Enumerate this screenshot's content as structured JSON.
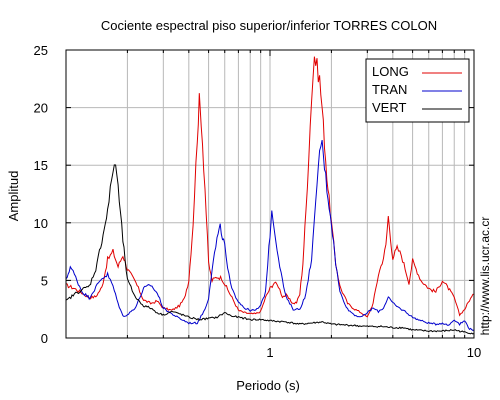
{
  "chart_data": {
    "type": "line",
    "title": "Cociente espectral piso superior/inferior  TORRES COLON",
    "xlabel": "Periodo (s)",
    "ylabel": "Amplitud",
    "xscale": "log",
    "xlim": [
      0.1,
      10
    ],
    "ylim": [
      0,
      25
    ],
    "yticks": [
      0,
      5,
      10,
      15,
      20,
      25
    ],
    "xtick_labels": [
      {
        "value": 1,
        "label": "1"
      },
      {
        "value": 10,
        "label": "10"
      }
    ],
    "grid": true,
    "legend": "top-right",
    "side_text": "http://www.lis.ucr.ac.cr",
    "series": [
      {
        "name": "LONG",
        "color": "#e00000",
        "points": [
          [
            0.1,
            4.6
          ],
          [
            0.11,
            4.3
          ],
          [
            0.12,
            3.9
          ],
          [
            0.13,
            3.5
          ],
          [
            0.14,
            3.6
          ],
          [
            0.15,
            4.4
          ],
          [
            0.16,
            6.8
          ],
          [
            0.17,
            7.5
          ],
          [
            0.18,
            6.2
          ],
          [
            0.19,
            7.2
          ],
          [
            0.2,
            6.0
          ],
          [
            0.22,
            4.8
          ],
          [
            0.24,
            3.3
          ],
          [
            0.26,
            3.0
          ],
          [
            0.28,
            3.2
          ],
          [
            0.3,
            2.6
          ],
          [
            0.33,
            2.4
          ],
          [
            0.36,
            2.8
          ],
          [
            0.38,
            3.4
          ],
          [
            0.4,
            5.0
          ],
          [
            0.42,
            10.0
          ],
          [
            0.44,
            17.5
          ],
          [
            0.45,
            20.6
          ],
          [
            0.46,
            19.0
          ],
          [
            0.48,
            13.0
          ],
          [
            0.5,
            6.5
          ],
          [
            0.52,
            5.0
          ],
          [
            0.55,
            5.3
          ],
          [
            0.58,
            5.2
          ],
          [
            0.62,
            4.2
          ],
          [
            0.66,
            3.3
          ],
          [
            0.7,
            2.4
          ],
          [
            0.75,
            2.2
          ],
          [
            0.8,
            2.1
          ],
          [
            0.85,
            2.1
          ],
          [
            0.9,
            2.3
          ],
          [
            0.95,
            3.5
          ],
          [
            1.0,
            4.3
          ],
          [
            1.05,
            4.8
          ],
          [
            1.1,
            4.5
          ],
          [
            1.15,
            3.6
          ],
          [
            1.2,
            3.7
          ],
          [
            1.25,
            3.3
          ],
          [
            1.3,
            3.0
          ],
          [
            1.35,
            3.1
          ],
          [
            1.4,
            3.8
          ],
          [
            1.45,
            6.5
          ],
          [
            1.5,
            11.0
          ],
          [
            1.55,
            16.0
          ],
          [
            1.6,
            21.0
          ],
          [
            1.65,
            24.5
          ],
          [
            1.7,
            23.5
          ],
          [
            1.75,
            22.5
          ],
          [
            1.8,
            20.0
          ],
          [
            1.85,
            17.0
          ],
          [
            1.9,
            14.0
          ],
          [
            2.0,
            10.0
          ],
          [
            2.1,
            6.5
          ],
          [
            2.2,
            4.5
          ],
          [
            2.4,
            3.0
          ],
          [
            2.6,
            2.5
          ],
          [
            2.8,
            2.2
          ],
          [
            3.0,
            1.8
          ],
          [
            3.2,
            3.0
          ],
          [
            3.4,
            5.5
          ],
          [
            3.6,
            7.0
          ],
          [
            3.7,
            8.0
          ],
          [
            3.8,
            10.6
          ],
          [
            3.9,
            8.5
          ],
          [
            4.0,
            7.0
          ],
          [
            4.2,
            7.8
          ],
          [
            4.4,
            7.2
          ],
          [
            4.6,
            6.0
          ],
          [
            4.8,
            4.8
          ],
          [
            5.0,
            6.7
          ],
          [
            5.2,
            6.0
          ],
          [
            5.5,
            5.0
          ],
          [
            6.0,
            4.3
          ],
          [
            6.5,
            4.0
          ],
          [
            7.0,
            5.0
          ],
          [
            7.5,
            4.3
          ],
          [
            8.0,
            3.5
          ],
          [
            8.5,
            2.0
          ],
          [
            9.0,
            2.5
          ],
          [
            9.5,
            3.3
          ],
          [
            10.0,
            3.8
          ]
        ]
      },
      {
        "name": "TRAN",
        "color": "#0000cc",
        "points": [
          [
            0.1,
            5.0
          ],
          [
            0.105,
            6.2
          ],
          [
            0.11,
            5.5
          ],
          [
            0.12,
            4.0
          ],
          [
            0.13,
            3.5
          ],
          [
            0.14,
            4.4
          ],
          [
            0.15,
            5.2
          ],
          [
            0.16,
            5.5
          ],
          [
            0.17,
            4.5
          ],
          [
            0.18,
            3.0
          ],
          [
            0.19,
            1.9
          ],
          [
            0.2,
            2.0
          ],
          [
            0.22,
            2.7
          ],
          [
            0.24,
            4.3
          ],
          [
            0.26,
            4.6
          ],
          [
            0.28,
            3.9
          ],
          [
            0.3,
            2.6
          ],
          [
            0.33,
            2.1
          ],
          [
            0.36,
            1.7
          ],
          [
            0.4,
            1.3
          ],
          [
            0.44,
            1.3
          ],
          [
            0.48,
            2.5
          ],
          [
            0.5,
            3.5
          ],
          [
            0.52,
            6.0
          ],
          [
            0.55,
            8.6
          ],
          [
            0.57,
            9.6
          ],
          [
            0.6,
            8.0
          ],
          [
            0.62,
            6.0
          ],
          [
            0.65,
            4.2
          ],
          [
            0.7,
            3.2
          ],
          [
            0.75,
            2.6
          ],
          [
            0.8,
            2.4
          ],
          [
            0.85,
            2.4
          ],
          [
            0.9,
            2.8
          ],
          [
            0.95,
            4.0
          ],
          [
            1.0,
            9.0
          ],
          [
            1.02,
            11.2
          ],
          [
            1.05,
            9.5
          ],
          [
            1.1,
            7.0
          ],
          [
            1.15,
            5.0
          ],
          [
            1.2,
            3.5
          ],
          [
            1.3,
            2.5
          ],
          [
            1.4,
            2.5
          ],
          [
            1.5,
            3.8
          ],
          [
            1.6,
            7.0
          ],
          [
            1.7,
            13.0
          ],
          [
            1.75,
            16.5
          ],
          [
            1.8,
            16.8
          ],
          [
            1.85,
            15.0
          ],
          [
            1.9,
            13.0
          ],
          [
            2.0,
            10.0
          ],
          [
            2.1,
            6.5
          ],
          [
            2.2,
            4.0
          ],
          [
            2.4,
            2.5
          ],
          [
            2.6,
            2.0
          ],
          [
            2.8,
            1.8
          ],
          [
            3.0,
            2.2
          ],
          [
            3.2,
            2.6
          ],
          [
            3.4,
            2.3
          ],
          [
            3.6,
            2.6
          ],
          [
            3.8,
            3.6
          ],
          [
            4.0,
            3.0
          ],
          [
            4.3,
            2.6
          ],
          [
            4.6,
            2.3
          ],
          [
            5.0,
            1.8
          ],
          [
            5.5,
            1.5
          ],
          [
            6.0,
            1.3
          ],
          [
            6.5,
            1.2
          ],
          [
            7.0,
            1.3
          ],
          [
            7.5,
            1.1
          ],
          [
            8.0,
            1.6
          ],
          [
            8.5,
            1.2
          ],
          [
            9.0,
            1.5
          ],
          [
            9.5,
            0.8
          ],
          [
            10.0,
            0.7
          ]
        ]
      },
      {
        "name": "VERT",
        "color": "#000000",
        "points": [
          [
            0.1,
            3.2
          ],
          [
            0.11,
            3.8
          ],
          [
            0.12,
            4.2
          ],
          [
            0.13,
            4.5
          ],
          [
            0.14,
            6.0
          ],
          [
            0.15,
            8.5
          ],
          [
            0.16,
            11.0
          ],
          [
            0.17,
            14.6
          ],
          [
            0.175,
            15.2
          ],
          [
            0.18,
            13.0
          ],
          [
            0.19,
            8.5
          ],
          [
            0.2,
            5.0
          ],
          [
            0.22,
            3.5
          ],
          [
            0.24,
            2.8
          ],
          [
            0.26,
            2.6
          ],
          [
            0.28,
            2.2
          ],
          [
            0.3,
            2.0
          ],
          [
            0.33,
            2.3
          ],
          [
            0.36,
            2.1
          ],
          [
            0.4,
            1.8
          ],
          [
            0.45,
            1.6
          ],
          [
            0.5,
            1.7
          ],
          [
            0.55,
            1.8
          ],
          [
            0.6,
            2.2
          ],
          [
            0.65,
            1.9
          ],
          [
            0.7,
            1.8
          ],
          [
            0.8,
            1.6
          ],
          [
            0.9,
            1.6
          ],
          [
            1.0,
            1.5
          ],
          [
            1.2,
            1.4
          ],
          [
            1.4,
            1.2
          ],
          [
            1.6,
            1.3
          ],
          [
            1.8,
            1.4
          ],
          [
            2.0,
            1.2
          ],
          [
            2.5,
            1.1
          ],
          [
            3.0,
            1.0
          ],
          [
            3.5,
            1.0
          ],
          [
            4.0,
            0.9
          ],
          [
            4.5,
            0.9
          ],
          [
            5.0,
            0.7
          ],
          [
            6.0,
            0.6
          ],
          [
            7.0,
            0.6
          ],
          [
            8.0,
            0.7
          ],
          [
            9.0,
            0.5
          ],
          [
            10.0,
            0.4
          ]
        ]
      }
    ]
  }
}
